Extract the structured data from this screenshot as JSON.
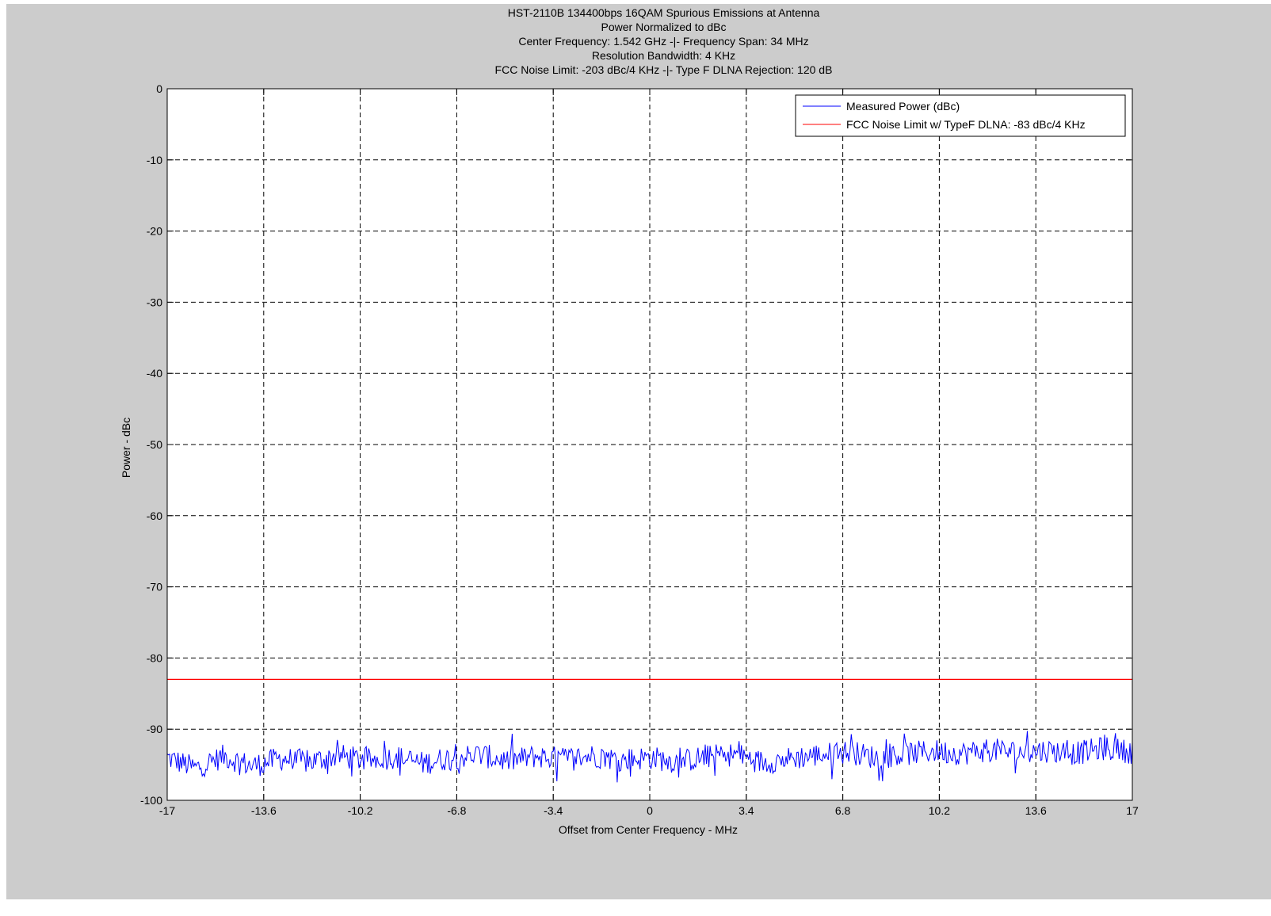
{
  "chart_data": {
    "type": "line",
    "title": [
      "HST-2110B 134400bps 16QAM Spurious Emissions at Antenna",
      "Power Normalized to dBc",
      "Center Frequency: 1.542 GHz -|- Frequency Span: 34 MHz",
      "Resolution Bandwidth: 4 KHz",
      "FCC Noise Limit: -203 dBc/4 KHz -|- Type F DLNA Rejection: 120 dB"
    ],
    "xlabel": "Offset from Center Frequency - MHz",
    "ylabel": "Power - dBc",
    "xlim": [
      -17,
      17
    ],
    "ylim": [
      -100,
      0
    ],
    "xticks": [
      -17,
      -13.6,
      -10.2,
      -6.8,
      -3.4,
      0,
      3.4,
      6.8,
      10.2,
      13.6,
      17
    ],
    "xtick_labels": [
      "-17",
      "-13.6",
      "-10.2",
      "-6.8",
      "-3.4",
      "0",
      "3.4",
      "6.8",
      "10.2",
      "13.6",
      "17"
    ],
    "yticks": [
      0,
      -10,
      -20,
      -30,
      -40,
      -50,
      -60,
      -70,
      -80,
      -90,
      -100
    ],
    "ytick_labels": [
      "0",
      "-10",
      "-20",
      "-30",
      "-40",
      "-50",
      "-60",
      "-70",
      "-80",
      "-90",
      "-100"
    ],
    "grid": true,
    "legend_position": "top-right",
    "series": [
      {
        "name": "Measured Power (dBc)",
        "color": "#0000ff",
        "x": [
          -17.0,
          -16.0,
          -15.0,
          -14.0,
          -13.0,
          -12.0,
          -11.0,
          -10.0,
          -9.0,
          -8.0,
          -7.0,
          -6.0,
          -5.0,
          -4.0,
          -3.0,
          -2.0,
          -1.0,
          0.0,
          1.0,
          2.0,
          3.0,
          4.0,
          5.0,
          6.0,
          7.0,
          8.0,
          9.0,
          10.0,
          11.0,
          12.0,
          13.0,
          14.0,
          15.0,
          16.0,
          17.0
        ],
        "y": [
          -94.0,
          -95.5,
          -93.8,
          -95.2,
          -94.1,
          -94.6,
          -93.7,
          -94.4,
          -93.9,
          -94.8,
          -94.0,
          -93.6,
          -94.5,
          -93.8,
          -94.2,
          -93.7,
          -94.3,
          -94.0,
          -94.6,
          -93.9,
          -93.5,
          -94.7,
          -94.1,
          -93.6,
          -93.2,
          -94.0,
          -93.5,
          -93.1,
          -93.4,
          -92.9,
          -93.3,
          -93.0,
          -93.4,
          -92.7,
          -93.2
        ],
        "ylim_band": [
          -98,
          -89.5
        ]
      },
      {
        "name": "FCC Noise Limit w/ TypeF DLNA: -83 dBc/4 KHz",
        "color": "#ff0000",
        "x": [
          -17,
          17
        ],
        "y": [
          -83,
          -83
        ]
      }
    ]
  }
}
